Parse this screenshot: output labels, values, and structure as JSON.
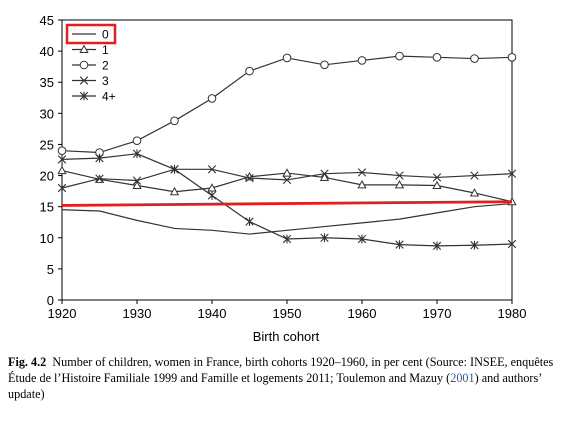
{
  "chart_data": {
    "type": "line",
    "xlabel": "Birth cohort",
    "ylabel": "",
    "xlim": [
      1920,
      1980
    ],
    "ylim": [
      0,
      45
    ],
    "xticks": [
      1920,
      1930,
      1940,
      1950,
      1960,
      1970,
      1980
    ],
    "yticks": [
      0,
      5,
      10,
      15,
      20,
      25,
      30,
      35,
      40,
      45
    ],
    "grid": false,
    "legend": "top-left",
    "x": [
      1920,
      1925,
      1930,
      1935,
      1940,
      1945,
      1950,
      1955,
      1960,
      1965,
      1970,
      1975,
      1980
    ],
    "series": [
      {
        "name": "0",
        "marker": "none",
        "values": [
          14.5,
          14.3,
          12.8,
          11.5,
          11.2,
          10.6,
          11.2,
          11.8,
          12.4,
          13.0,
          14.0,
          15.0,
          15.5
        ]
      },
      {
        "name": "1",
        "marker": "triangle",
        "values": [
          20.8,
          19.4,
          18.4,
          17.4,
          18.0,
          19.8,
          20.4,
          19.7,
          18.5,
          18.5,
          18.4,
          17.2,
          15.8
        ]
      },
      {
        "name": "2",
        "marker": "circle",
        "values": [
          24.0,
          23.7,
          25.6,
          28.8,
          32.4,
          36.8,
          38.9,
          37.8,
          38.5,
          39.2,
          39.0,
          38.8,
          39.0
        ]
      },
      {
        "name": "3",
        "marker": "x",
        "values": [
          18.0,
          19.5,
          19.2,
          21.0,
          21.0,
          19.6,
          19.3,
          20.3,
          20.5,
          20.0,
          19.7,
          20.0,
          20.3
        ]
      },
      {
        "name": "4+",
        "marker": "star",
        "values": [
          22.6,
          22.8,
          23.5,
          21.0,
          16.8,
          12.6,
          9.8,
          10.0,
          9.8,
          8.9,
          8.7,
          8.8,
          9.0
        ]
      }
    ],
    "annotation_line": {
      "color": "#e02020",
      "x": [
        1920,
        1980
      ],
      "y": [
        15.2,
        15.8
      ]
    },
    "legend_highlight_color": "#e02020"
  },
  "caption": {
    "fig_label": "Fig. 4.2",
    "text_before": "Number of children, women in France, birth cohorts 1920–1960, in per cent (Source: INSEE, enquêtes Étude de l’Histoire Familiale 1999 and Famille et logements 2011; Toulemon and Mazuy (",
    "ref_year": "2001",
    "text_after": ") and authors’ update)",
    "link_color": "#2a5db0"
  }
}
